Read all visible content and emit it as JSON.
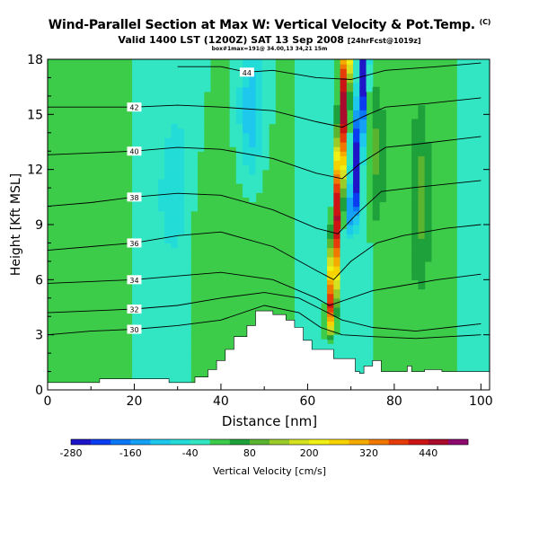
{
  "titles": {
    "main": "Wind-Parallel Section at Max W: Vertical Velocity & Pot.Temp.",
    "main_sup": "(C)",
    "valid": "Valid 1400 LST (1200Z) SAT 13 Sep 2008",
    "valid_sup": "[24hrFcst@1019z]",
    "sub": "box#1max=191@ 34.00,13 34,21 15m"
  },
  "chart_data": {
    "type": "heatmap",
    "xlabel": "Distance [nm]",
    "ylabel": "Height [Kft MSL]",
    "xlim": [
      0,
      102
    ],
    "ylim": [
      0,
      18
    ],
    "x_ticks": [
      0,
      20,
      40,
      60,
      80,
      100
    ],
    "y_ticks": [
      0,
      3,
      6,
      9,
      12,
      15,
      18
    ],
    "colorbar": {
      "label": "Vertical Velocity [cm/s]",
      "tick_labels": [
        "-280",
        "-160",
        "-40",
        "80",
        "200",
        "320",
        "440"
      ],
      "levels": [
        -280,
        -240,
        -200,
        -160,
        -120,
        -80,
        -40,
        0,
        40,
        80,
        120,
        160,
        200,
        240,
        280,
        320,
        360,
        400,
        440,
        480
      ],
      "colors": [
        "#1e14c8",
        "#0a3cf0",
        "#0a78f5",
        "#14a0f5",
        "#1ec8ec",
        "#23dcd8",
        "#32e6c4",
        "#3ccc4a",
        "#1ea03a",
        "#5ab430",
        "#9acb28",
        "#d4e020",
        "#f0f014",
        "#f5d200",
        "#f5aa00",
        "#f07800",
        "#e63c0a",
        "#cc1414",
        "#aa0a2c",
        "#8c0a6e"
      ]
    },
    "terrain": [
      [
        0,
        0.4
      ],
      [
        12,
        0.4
      ],
      [
        12,
        0.6
      ],
      [
        28,
        0.6
      ],
      [
        28,
        0.4
      ],
      [
        34,
        0.4
      ],
      [
        34,
        0.7
      ],
      [
        37,
        0.7
      ],
      [
        37,
        1.1
      ],
      [
        39,
        1.1
      ],
      [
        39,
        1.6
      ],
      [
        41,
        1.6
      ],
      [
        41,
        2.2
      ],
      [
        43,
        2.2
      ],
      [
        43,
        2.9
      ],
      [
        46,
        2.9
      ],
      [
        46,
        3.5
      ],
      [
        48,
        3.5
      ],
      [
        48,
        4.3
      ],
      [
        52,
        4.3
      ],
      [
        52,
        4.1
      ],
      [
        55,
        4.1
      ],
      [
        55,
        3.8
      ],
      [
        57,
        3.8
      ],
      [
        57,
        3.4
      ],
      [
        59,
        3.4
      ],
      [
        59,
        2.7
      ],
      [
        61,
        2.7
      ],
      [
        61,
        2.2
      ],
      [
        66,
        2.2
      ],
      [
        66,
        1.7
      ],
      [
        71,
        1.7
      ],
      [
        71,
        1.0
      ],
      [
        72,
        1.0
      ],
      [
        72,
        0.9
      ],
      [
        73,
        0.9
      ],
      [
        73,
        1.3
      ],
      [
        75,
        1.3
      ],
      [
        75,
        1.6
      ],
      [
        77,
        1.6
      ],
      [
        77,
        1.0
      ],
      [
        83,
        1.0
      ],
      [
        83,
        1.3
      ],
      [
        84,
        1.3
      ],
      [
        84,
        1.0
      ],
      [
        87,
        1.0
      ],
      [
        87,
        1.1
      ],
      [
        91,
        1.1
      ],
      [
        91,
        1.0
      ],
      [
        102,
        1.0
      ]
    ],
    "theta_contours": [
      {
        "label": "30",
        "points": [
          [
            0,
            3.0
          ],
          [
            10,
            3.2
          ],
          [
            20,
            3.3
          ],
          [
            30,
            3.5
          ],
          [
            40,
            3.8
          ],
          [
            50,
            4.6
          ],
          [
            58,
            4.2
          ],
          [
            63,
            3.4
          ],
          [
            68,
            3.0
          ],
          [
            75,
            2.9
          ],
          [
            85,
            2.8
          ],
          [
            100,
            3.0
          ]
        ]
      },
      {
        "label": "32",
        "points": [
          [
            0,
            4.2
          ],
          [
            10,
            4.3
          ],
          [
            20,
            4.4
          ],
          [
            30,
            4.6
          ],
          [
            40,
            5.0
          ],
          [
            50,
            5.3
          ],
          [
            58,
            5.0
          ],
          [
            63,
            4.4
          ],
          [
            68,
            3.8
          ],
          [
            75,
            3.4
          ],
          [
            85,
            3.2
          ],
          [
            100,
            3.6
          ]
        ]
      },
      {
        "label": "34",
        "points": [
          [
            0,
            5.8
          ],
          [
            10,
            5.9
          ],
          [
            20,
            6.0
          ],
          [
            30,
            6.2
          ],
          [
            40,
            6.4
          ],
          [
            52,
            6.0
          ],
          [
            62,
            5.0
          ],
          [
            65,
            4.6
          ],
          [
            70,
            5.0
          ],
          [
            75,
            5.4
          ],
          [
            80,
            5.6
          ],
          [
            90,
            6.0
          ],
          [
            100,
            6.3
          ]
        ]
      },
      {
        "label": "36",
        "points": [
          [
            0,
            7.6
          ],
          [
            10,
            7.8
          ],
          [
            20,
            8.0
          ],
          [
            30,
            8.4
          ],
          [
            40,
            8.6
          ],
          [
            52,
            7.8
          ],
          [
            62,
            6.5
          ],
          [
            66,
            6.0
          ],
          [
            70,
            7.0
          ],
          [
            76,
            8.0
          ],
          [
            82,
            8.4
          ],
          [
            92,
            8.8
          ],
          [
            100,
            9.0
          ]
        ]
      },
      {
        "label": "38",
        "points": [
          [
            0,
            10.0
          ],
          [
            10,
            10.2
          ],
          [
            20,
            10.5
          ],
          [
            30,
            10.7
          ],
          [
            40,
            10.6
          ],
          [
            52,
            9.8
          ],
          [
            62,
            8.8
          ],
          [
            67,
            8.5
          ],
          [
            71,
            9.5
          ],
          [
            77,
            10.8
          ],
          [
            84,
            11.0
          ],
          [
            100,
            11.4
          ]
        ]
      },
      {
        "label": "40",
        "points": [
          [
            0,
            12.8
          ],
          [
            10,
            12.9
          ],
          [
            20,
            13.0
          ],
          [
            30,
            13.2
          ],
          [
            40,
            13.1
          ],
          [
            52,
            12.6
          ],
          [
            62,
            11.8
          ],
          [
            68,
            11.5
          ],
          [
            72,
            12.3
          ],
          [
            78,
            13.2
          ],
          [
            86,
            13.4
          ],
          [
            100,
            13.8
          ]
        ]
      },
      {
        "label": "42",
        "points": [
          [
            0,
            15.4
          ],
          [
            10,
            15.4
          ],
          [
            20,
            15.4
          ],
          [
            30,
            15.5
          ],
          [
            40,
            15.4
          ],
          [
            52,
            15.2
          ],
          [
            62,
            14.6
          ],
          [
            68,
            14.3
          ],
          [
            73,
            14.9
          ],
          [
            78,
            15.4
          ],
          [
            88,
            15.6
          ],
          [
            100,
            15.9
          ]
        ]
      },
      {
        "label": "44",
        "points": [
          [
            30,
            17.6
          ],
          [
            40,
            17.6
          ],
          [
            46,
            17.3
          ],
          [
            52,
            17.4
          ],
          [
            62,
            17.0
          ],
          [
            70,
            16.9
          ],
          [
            78,
            17.4
          ],
          [
            90,
            17.6
          ],
          [
            100,
            17.8
          ]
        ]
      }
    ]
  }
}
